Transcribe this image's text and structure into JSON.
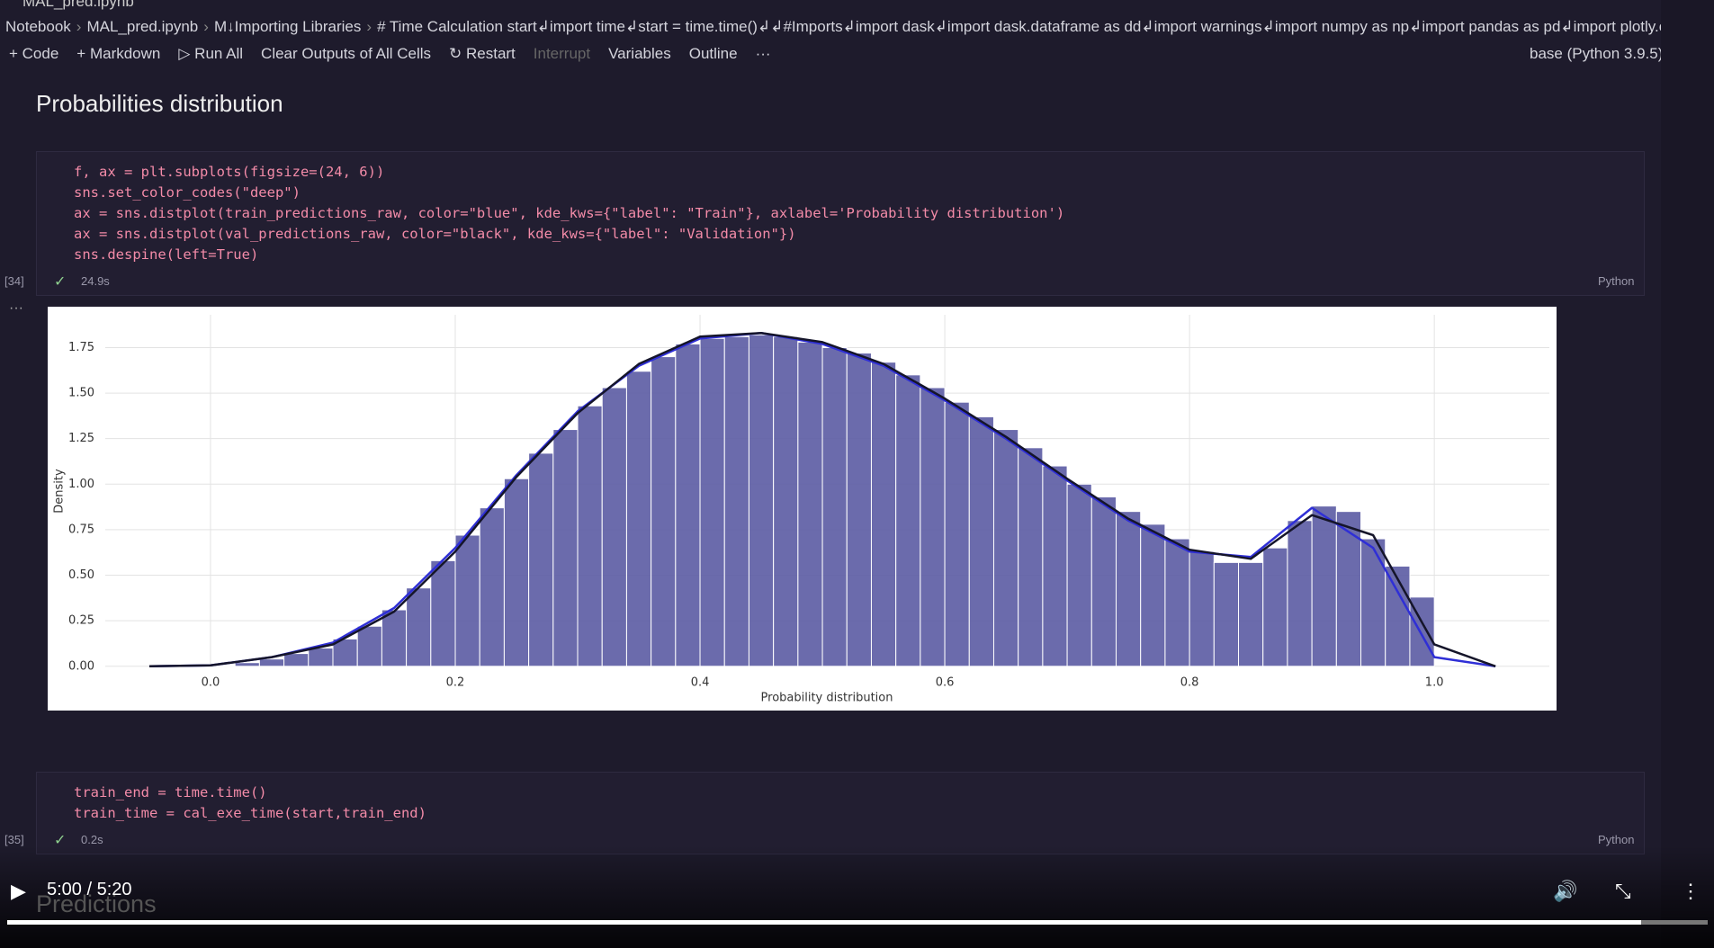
{
  "tab_title": "MAL_pred.ipynb",
  "breadcrumb": [
    "Notebook",
    "MAL_pred.ipynb",
    "M↓Importing Libraries",
    "# Time Calculation start↲import time↲start = time.time()↲↲#Imports↲import dask↲import dask.dataframe as dd↲import warnings↲import numpy as np↲import pandas as pd↲import plotly.express as px"
  ],
  "toolbar": {
    "items": [
      "+ Code",
      "+ Markdown",
      "▷ Run All",
      "Clear Outputs of All Cells",
      "↻ Restart",
      "Interrupt",
      "Variables",
      "Outline",
      "···"
    ],
    "kernel": "base (Python 3.9.5)"
  },
  "heading": "Probabilities distribution",
  "cells": [
    {
      "code": [
        "f, ax = plt.subplots(figsize=(24, 6))",
        "sns.set_color_codes(\"deep\")",
        "ax = sns.distplot(train_predictions_raw, color=\"blue\", kde_kws={\"label\": \"Train\"}, axlabel='Probability distribution')",
        "ax = sns.distplot(val_predictions_raw, color=\"black\", kde_kws={\"label\": \"Validation\"})",
        "sns.despine(left=True)"
      ],
      "exec_count": "[34]",
      "duration": "24.9s",
      "language": "Python"
    },
    {
      "code": [
        "train_end = time.time()",
        "train_time = cal_exe_time(start,train_end)"
      ],
      "exec_count": "[35]",
      "duration": "0.2s",
      "language": "Python"
    }
  ],
  "chart_data": {
    "type": "histogram",
    "xlabel": "Probability distribution",
    "ylabel": "Density",
    "bins": [
      0,
      0.02,
      0.04,
      0.06,
      0.08,
      0.1,
      0.12,
      0.14,
      0.16,
      0.18,
      0.2,
      0.22,
      0.24,
      0.26,
      0.28,
      0.3,
      0.32,
      0.34,
      0.36,
      0.38,
      0.4,
      0.42,
      0.44,
      0.46,
      0.48,
      0.5,
      0.52,
      0.54,
      0.56,
      0.58,
      0.6,
      0.62,
      0.64,
      0.66,
      0.68,
      0.7,
      0.72,
      0.74,
      0.76,
      0.78,
      0.8,
      0.82,
      0.84,
      0.86,
      0.88,
      0.9,
      0.92,
      0.94,
      0.96,
      0.98,
      1
    ],
    "values": [
      0.005,
      0.02,
      0.04,
      0.07,
      0.1,
      0.15,
      0.22,
      0.31,
      0.43,
      0.58,
      0.72,
      0.87,
      1.03,
      1.17,
      1.3,
      1.43,
      1.53,
      1.62,
      1.7,
      1.77,
      1.8,
      1.81,
      1.82,
      1.81,
      1.78,
      1.75,
      1.72,
      1.67,
      1.6,
      1.53,
      1.45,
      1.37,
      1.3,
      1.2,
      1.1,
      1.0,
      0.93,
      0.85,
      0.78,
      0.7,
      0.63,
      0.57,
      0.57,
      0.65,
      0.8,
      0.88,
      0.85,
      0.7,
      0.55,
      0.38
    ],
    "color": "#5b5ba3",
    "lines": [
      {
        "name": "Train",
        "color": "#2f2fd6",
        "x": [
          -0.05,
          0,
          0.05,
          0.1,
          0.15,
          0.2,
          0.25,
          0.3,
          0.35,
          0.4,
          0.45,
          0.5,
          0.55,
          0.6,
          0.65,
          0.7,
          0.75,
          0.8,
          0.85,
          0.9,
          0.95,
          1.0,
          1.05
        ],
        "values": [
          0,
          0.005,
          0.05,
          0.13,
          0.32,
          0.65,
          1.05,
          1.4,
          1.65,
          1.8,
          1.83,
          1.77,
          1.65,
          1.46,
          1.25,
          1.02,
          0.8,
          0.63,
          0.6,
          0.87,
          0.65,
          0.05,
          0
        ]
      },
      {
        "name": "Validation",
        "color": "#15152a",
        "x": [
          -0.05,
          0,
          0.05,
          0.1,
          0.15,
          0.2,
          0.25,
          0.3,
          0.35,
          0.4,
          0.45,
          0.5,
          0.55,
          0.6,
          0.65,
          0.7,
          0.75,
          0.8,
          0.85,
          0.9,
          0.95,
          1.0,
          1.05
        ],
        "values": [
          0,
          0.005,
          0.05,
          0.12,
          0.3,
          0.63,
          1.04,
          1.39,
          1.66,
          1.81,
          1.83,
          1.78,
          1.66,
          1.47,
          1.26,
          1.03,
          0.81,
          0.64,
          0.59,
          0.83,
          0.72,
          0.12,
          0
        ]
      }
    ],
    "xlim": [
      -0.086,
      1.094
    ],
    "ylim": [
      -0.09,
      1.93
    ],
    "xticks": [
      {
        "value": 0,
        "label": "0.0"
      },
      {
        "value": 0.2,
        "label": "0.2"
      },
      {
        "value": 0.4,
        "label": "0.4"
      },
      {
        "value": 0.6,
        "label": "0.6"
      },
      {
        "value": 0.8,
        "label": "0.8"
      },
      {
        "value": 1,
        "label": "1.0"
      }
    ],
    "yticks": [
      {
        "value": 0,
        "label": "0.00"
      },
      {
        "value": 0.25,
        "label": "0.25"
      },
      {
        "value": 0.5,
        "label": "0.50"
      },
      {
        "value": 0.75,
        "label": "0.75"
      },
      {
        "value": 1,
        "label": "1.00"
      },
      {
        "value": 1.25,
        "label": "1.25"
      },
      {
        "value": 1.5,
        "label": "1.50"
      },
      {
        "value": 1.75,
        "label": "1.75"
      }
    ],
    "grid": true
  },
  "video": {
    "time": "5:00 / 5:20",
    "caption": "Predictions"
  }
}
